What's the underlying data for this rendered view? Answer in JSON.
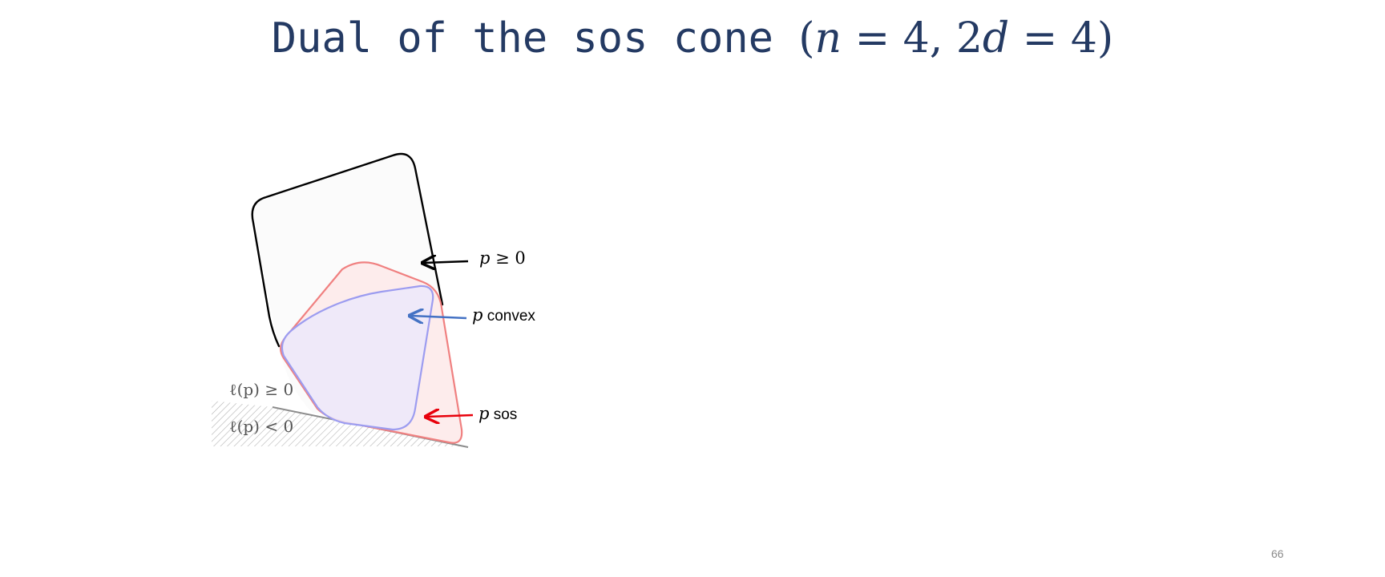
{
  "slide": {
    "title_text": "Dual of the sos cone",
    "title_math_open": "(",
    "title_math_n": "n",
    "title_math_mid": " = 4, 2",
    "title_math_d": "d",
    "title_math_close": " = 4)",
    "page_number": "66"
  },
  "diagram": {
    "labels": {
      "nonneg_var": "p",
      "nonneg_rel": " ≥ 0",
      "convex_var": "p",
      "convex_text": " convex",
      "sos_var": "p",
      "sos_text": " sos",
      "halfspace_pos": "ℓ(p) ≥ 0",
      "halfspace_neg": "ℓ(p) < 0"
    },
    "colors": {
      "title": "#243a63",
      "nonneg_outline": "#000000",
      "convex_outline": "#9c9cf0",
      "sos_outline": "#f08080",
      "convex_arrow": "#4472c4",
      "sos_arrow": "#e8000b",
      "hyperplane": "#8c8c8c"
    }
  }
}
